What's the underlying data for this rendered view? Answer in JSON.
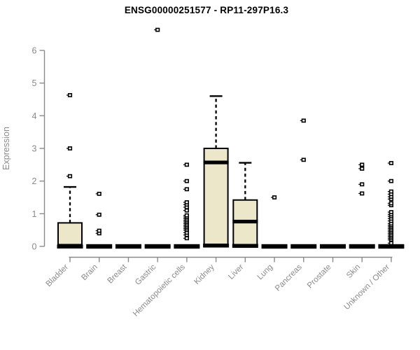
{
  "chart_data": {
    "type": "boxplot",
    "title": "ENSG00000251577 - RP11-297P16.3",
    "ylabel": "Expression",
    "ylim": [
      0,
      6
    ],
    "yticks": [
      0,
      1,
      2,
      3,
      4,
      5,
      6
    ],
    "grid": false,
    "legend": "none",
    "categories": [
      "Bladder",
      "Brain",
      "Breast",
      "Gastric",
      "Hematopoietic cells",
      "Kidney",
      "Liver",
      "Lung",
      "Pancreas",
      "Prostate",
      "Skin",
      "Unknown / Other"
    ],
    "boxes": [
      {
        "category": "Bladder",
        "whisker_low": 0,
        "q1": 0,
        "median": 0.02,
        "q3": 0.72,
        "whisker_high": 1.82,
        "outliers": [
          2.15,
          3.0,
          4.63
        ]
      },
      {
        "category": "Brain",
        "whisker_low": 0,
        "q1": 0,
        "median": 0,
        "q3": 0,
        "whisker_high": 0,
        "outliers": [
          0.4,
          0.48,
          0.97,
          1.61
        ]
      },
      {
        "category": "Breast",
        "whisker_low": 0,
        "q1": 0,
        "median": 0,
        "q3": 0,
        "whisker_high": 0,
        "outliers": []
      },
      {
        "category": "Gastric",
        "whisker_low": 0,
        "q1": 0,
        "median": 0,
        "q3": 0,
        "whisker_high": 0,
        "outliers": [
          6.63
        ]
      },
      {
        "category": "Hematopoietic cells",
        "whisker_low": 0,
        "q1": 0,
        "median": 0,
        "q3": 0,
        "whisker_high": 0,
        "outliers": [
          0.25,
          0.35,
          0.42,
          0.5,
          0.55,
          0.6,
          0.65,
          0.7,
          0.75,
          0.8,
          0.85,
          0.9,
          0.95,
          1.1,
          1.2,
          1.28,
          1.35,
          1.75,
          2.0,
          2.5
        ]
      },
      {
        "category": "Kidney",
        "whisker_low": 0.03,
        "q1": 0.03,
        "median": 2.57,
        "q3": 3.0,
        "whisker_high": 4.6,
        "outliers": []
      },
      {
        "category": "Liver",
        "whisker_low": 0.02,
        "q1": 0.02,
        "median": 0.76,
        "q3": 1.42,
        "whisker_high": 2.56,
        "outliers": []
      },
      {
        "category": "Lung",
        "whisker_low": 0,
        "q1": 0,
        "median": 0,
        "q3": 0,
        "whisker_high": 0,
        "outliers": [
          1.5
        ]
      },
      {
        "category": "Pancreas",
        "whisker_low": 0,
        "q1": 0,
        "median": 0,
        "q3": 0,
        "whisker_high": 0,
        "outliers": [
          2.65,
          3.85
        ]
      },
      {
        "category": "Prostate",
        "whisker_low": 0,
        "q1": 0,
        "median": 0,
        "q3": 0,
        "whisker_high": 0,
        "outliers": []
      },
      {
        "category": "Skin",
        "whisker_low": 0,
        "q1": 0,
        "median": 0,
        "q3": 0,
        "whisker_high": 0,
        "outliers": [
          1.62,
          1.9,
          2.38,
          2.5
        ]
      },
      {
        "category": "Unknown / Other",
        "whisker_low": 0,
        "q1": 0,
        "median": 0,
        "q3": 0,
        "whisker_high": 0,
        "outliers": [
          0.1,
          0.2,
          0.25,
          0.3,
          0.35,
          0.4,
          0.45,
          0.5,
          0.55,
          0.6,
          0.65,
          0.7,
          0.78,
          0.85,
          0.92,
          0.98,
          1.05,
          1.26,
          1.32,
          1.45,
          1.52,
          1.6,
          1.68,
          2.0,
          2.55
        ]
      }
    ],
    "colors": {
      "background": "#ffffff",
      "box_fill": "#EDE7C9",
      "box_border": "#000000",
      "median": "#000000",
      "whisker": "#000000",
      "outlier": "#000000",
      "axis_line": "#8a8a8a",
      "axis_text": "#8a8a8a",
      "title_text": "#000000"
    }
  }
}
